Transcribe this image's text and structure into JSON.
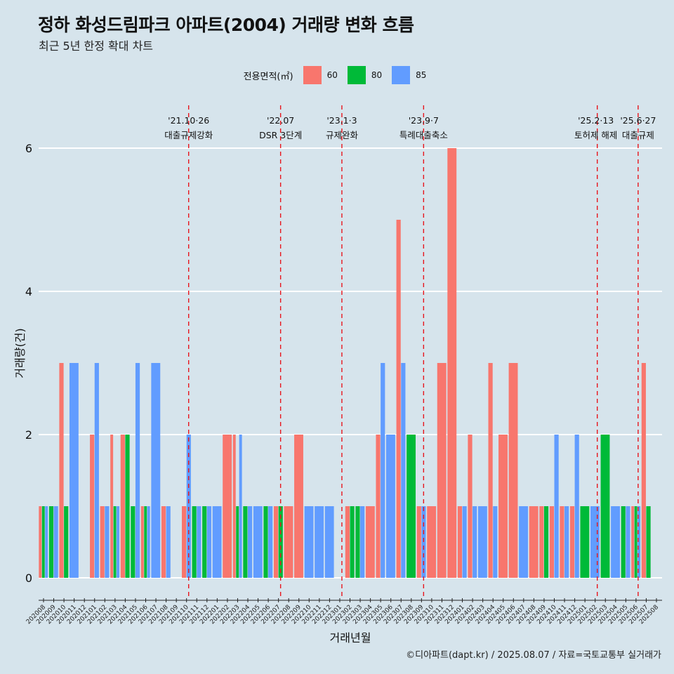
{
  "title": "정하 화성드림파크 아파트(2004) 거래량 변화 흐름",
  "subtitle": "최근 5년 한정 확대 차트",
  "caption": "©디아파트(dapt.kr) / 2025.08.07 / 자료=국토교통부 실거래가",
  "legend": {
    "title": "전용면적(㎡)",
    "items": [
      {
        "label": "60",
        "color": "#f8766d"
      },
      {
        "label": "80",
        "color": "#00ba38"
      },
      {
        "label": "85",
        "color": "#619cff"
      }
    ]
  },
  "chart_data": {
    "type": "bar",
    "xlabel": "거래년월",
    "ylabel": "거래량(건)",
    "ylim": [
      -0.3,
      6.6
    ],
    "yticks": [
      0,
      2,
      4,
      6
    ],
    "grid": true,
    "legend_position": "top",
    "categories": [
      "202008",
      "202009",
      "202010",
      "202011",
      "202012",
      "202101",
      "202102",
      "202103",
      "202104",
      "202105",
      "202106",
      "202107",
      "202108",
      "202109",
      "202110",
      "202111",
      "202112",
      "202201",
      "202202",
      "202203",
      "202204",
      "202205",
      "202206",
      "202207",
      "202208",
      "202209",
      "202210",
      "202211",
      "202212",
      "202301",
      "202302",
      "202303",
      "202304",
      "202305",
      "202306",
      "202307",
      "202308",
      "202309",
      "202310",
      "202311",
      "202312",
      "202401",
      "202402",
      "202403",
      "202404",
      "202405",
      "202406",
      "202407",
      "202408",
      "202409",
      "202410",
      "202411",
      "202412",
      "202501",
      "202502",
      "202503",
      "202504",
      "202505",
      "202506",
      "202507",
      "202508"
    ],
    "series": [
      {
        "name": "60",
        "color": "#f8766d",
        "values": [
          1,
          0,
          3,
          0,
          0,
          2,
          1,
          2,
          2,
          0,
          1,
          0,
          1,
          0,
          1,
          0,
          0,
          0,
          2,
          2,
          0,
          0,
          0,
          1,
          1,
          2,
          0,
          0,
          0,
          0,
          1,
          0,
          1,
          2,
          0,
          5,
          0,
          1,
          1,
          3,
          6,
          1,
          2,
          0,
          3,
          2,
          3,
          0,
          1,
          1,
          1,
          1,
          1,
          0,
          0,
          0,
          0,
          0,
          1,
          3,
          0
        ]
      },
      {
        "name": "80",
        "color": "#00ba38",
        "values": [
          1,
          1,
          1,
          0,
          0,
          0,
          0,
          1,
          2,
          1,
          1,
          0,
          0,
          0,
          0,
          1,
          1,
          0,
          0,
          1,
          1,
          0,
          1,
          1,
          0,
          0,
          0,
          0,
          0,
          0,
          1,
          1,
          0,
          0,
          0,
          0,
          2,
          0,
          0,
          0,
          0,
          0,
          0,
          0,
          0,
          0,
          0,
          0,
          0,
          1,
          0,
          0,
          0,
          1,
          0,
          2,
          0,
          1,
          1,
          1,
          0
        ]
      },
      {
        "name": "85",
        "color": "#619cff",
        "values": [
          1,
          1,
          0,
          3,
          0,
          3,
          1,
          1,
          0,
          3,
          1,
          3,
          1,
          0,
          2,
          1,
          1,
          1,
          0,
          2,
          1,
          1,
          1,
          0,
          0,
          0,
          1,
          1,
          1,
          0,
          0,
          1,
          0,
          3,
          2,
          3,
          0,
          1,
          0,
          0,
          0,
          1,
          1,
          1,
          1,
          0,
          0,
          1,
          0,
          0,
          2,
          1,
          2,
          0,
          1,
          0,
          1,
          1,
          1,
          0,
          0
        ]
      }
    ],
    "annotations": [
      {
        "x": "202110",
        "date": "'21.10·26",
        "text": "대출규제강화"
      },
      {
        "x": "202207",
        "date": "'22.07",
        "text": "DSR 3단계"
      },
      {
        "x": "202301",
        "date": "'23.1·3",
        "text": "규제완화"
      },
      {
        "x": "202309",
        "date": "'23.9·7",
        "text": "특례대출축소"
      },
      {
        "x": "202502",
        "date": "'25.2·13",
        "text": "토허제 해제"
      },
      {
        "x": "202506",
        "date": "'25.6·27",
        "text": "대출규제"
      }
    ]
  }
}
